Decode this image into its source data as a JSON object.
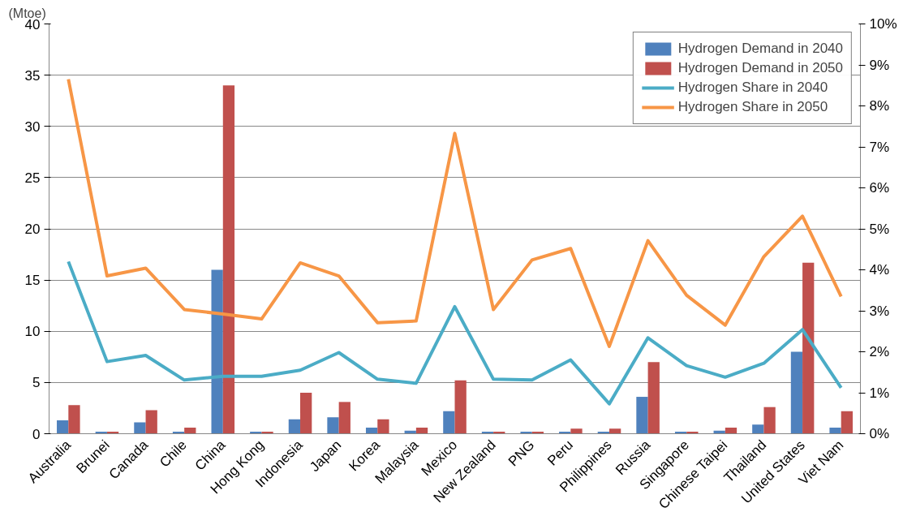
{
  "chart_data": {
    "type": "bar",
    "ylabel": "(Mtoe)",
    "categories": [
      "Australia",
      "Brunei",
      "Canada",
      "Chile",
      "China",
      "Hong Kong",
      "Indonesia",
      "Japan",
      "Korea",
      "Malaysia",
      "Mexico",
      "New Zealand",
      "PNG",
      "Peru",
      "Philippines",
      "Russia",
      "Singapore",
      "Chinese Taipei",
      "Thailand",
      "United States",
      "Viet Nam"
    ],
    "series": [
      {
        "name": "Hydrogen Demand in 2040",
        "color": "#4f81bd",
        "values": [
          1.3,
          0.2,
          1.1,
          0.2,
          16,
          0.2,
          1.4,
          1.6,
          0.6,
          0.3,
          2.2,
          0.2,
          0.2,
          0.2,
          0.2,
          3.6,
          0.2,
          0.3,
          0.9,
          8.0,
          0.6
        ]
      },
      {
        "name": "Hydrogen Demand in 2050",
        "color": "#c0504d",
        "values": [
          2.8,
          0.2,
          2.3,
          0.6,
          34,
          0.2,
          4.0,
          3.1,
          1.4,
          0.6,
          5.2,
          0.2,
          0.2,
          0.5,
          0.5,
          7.0,
          0.2,
          0.6,
          2.6,
          16.7,
          2.2
        ]
      },
      {
        "name": "Hydrogen Share in 2040",
        "type": "line",
        "axis": "y2",
        "color": "#4bacc6",
        "values": [
          4.2,
          1.76,
          1.91,
          1.31,
          1.4,
          1.4,
          1.55,
          1.98,
          1.33,
          1.23,
          3.1,
          1.33,
          1.31,
          1.8,
          0.73,
          2.34,
          1.66,
          1.38,
          1.72,
          2.54,
          1.12
        ]
      },
      {
        "name": "Hydrogen Share in 2050",
        "type": "line",
        "axis": "y2",
        "color": "#f79646",
        "values": [
          8.65,
          3.85,
          4.04,
          3.03,
          2.92,
          2.8,
          4.17,
          3.85,
          2.71,
          2.75,
          7.33,
          3.03,
          4.24,
          4.52,
          2.13,
          4.71,
          3.38,
          2.65,
          4.32,
          5.31,
          3.35
        ]
      }
    ],
    "ylim": [
      0,
      40
    ],
    "yticks": [
      0,
      5,
      10,
      15,
      20,
      25,
      30,
      35,
      40
    ],
    "y2lim": [
      0,
      10
    ],
    "y2ticks": [
      {
        "value": 0,
        "label": "0%"
      },
      {
        "value": 1,
        "label": "1%"
      },
      {
        "value": 2,
        "label": "2%"
      },
      {
        "value": 3,
        "label": "3%"
      },
      {
        "value": 4,
        "label": "4%"
      },
      {
        "value": 5,
        "label": "5%"
      },
      {
        "value": 6,
        "label": "6%"
      },
      {
        "value": 7,
        "label": "7%"
      },
      {
        "value": 8,
        "label": "8%"
      },
      {
        "value": 9,
        "label": "9%"
      },
      {
        "value": 10,
        "label": "10%"
      }
    ],
    "grid": "y",
    "legend": "top right",
    "line_style": "solid"
  }
}
